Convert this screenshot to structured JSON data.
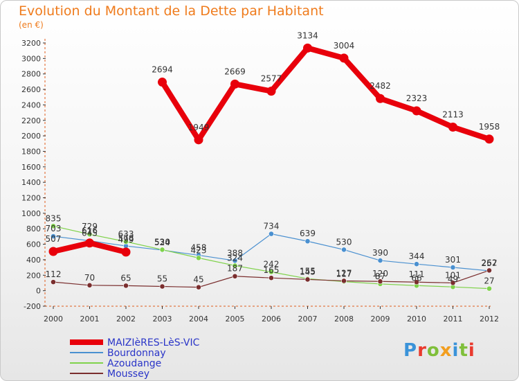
{
  "header": {
    "title": "Evolution du Montant de la Dette par Habitant",
    "unit": "(en €)"
  },
  "logo": {
    "text": "Proxiti",
    "colors": [
      "#3a93d9",
      "#e93a2e",
      "#7fbf3a",
      "#f29e1f",
      "#3a93d9",
      "#7fbf3a",
      "#e93a2e"
    ]
  },
  "chart_data": {
    "type": "line",
    "title": "Evolution du Montant de la Dette par Habitant",
    "ylabel": "(en €)",
    "xlabel": "",
    "x": [
      "2000",
      "2001",
      "2002",
      "2003",
      "2004",
      "2005",
      "2006",
      "2007",
      "2008",
      "2009",
      "2010",
      "2011",
      "2012"
    ],
    "ylim": [
      -200,
      3200
    ],
    "yticks": [
      -200,
      0,
      200,
      400,
      600,
      800,
      1000,
      1200,
      1400,
      1600,
      1800,
      2000,
      2200,
      2400,
      2600,
      2800,
      3000,
      3200
    ],
    "grid": false,
    "legend": "bottom-left",
    "series": [
      {
        "name": "MAIZIèRES-LèS-VIC",
        "color": "#e8000b",
        "width": 8,
        "values": [
          507,
          616,
          499,
          2694,
          1949,
          2669,
          2577,
          3134,
          3004,
          2482,
          2323,
          2113,
          1958
        ]
      },
      {
        "name": "Bourdonnay",
        "color": "#4a90d0",
        "width": 1.2,
        "values": [
          703,
          645,
          578,
          524,
          458,
          388,
          734,
          639,
          530,
          390,
          344,
          301,
          257
        ]
      },
      {
        "name": "Azoudange",
        "color": "#7fd24a",
        "width": 1.2,
        "values": [
          835,
          729,
          633,
          530,
          423,
          324,
          242,
          155,
          117,
          87,
          66,
          49,
          27
        ]
      },
      {
        "name": "Moussey",
        "color": "#7a2e2e",
        "width": 1.2,
        "values": [
          112,
          70,
          65,
          55,
          45,
          187,
          165,
          145,
          127,
          120,
          111,
          101,
          262
        ]
      }
    ]
  }
}
